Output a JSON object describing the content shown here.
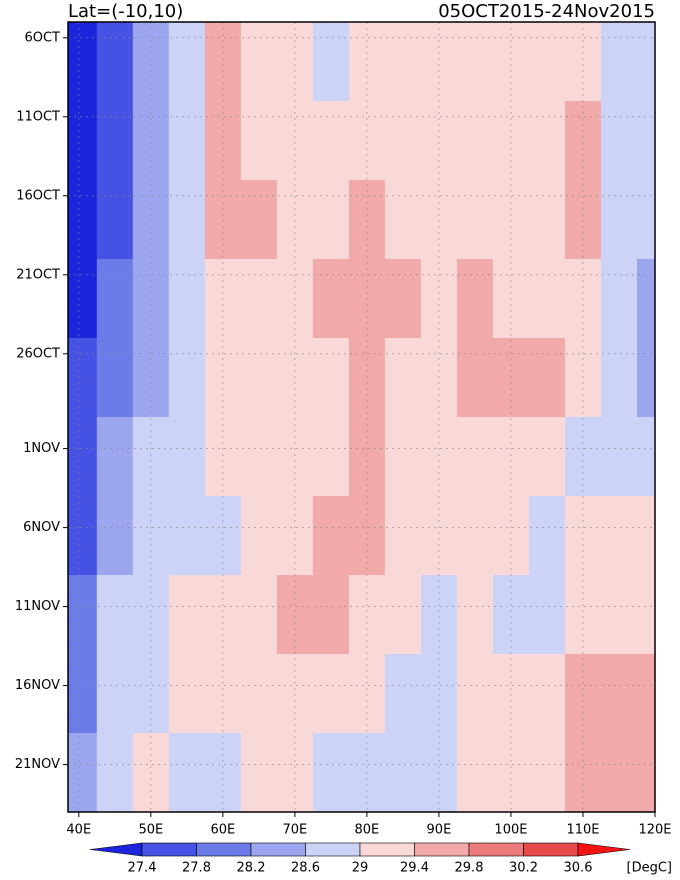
{
  "chart_data": {
    "type": "heatmap",
    "title": "Lat=(-10,10)",
    "subtitle": "05OCT2015-24Nov2015",
    "x": [
      40,
      45,
      50,
      55,
      60,
      65,
      70,
      75,
      80,
      85,
      90,
      95,
      100,
      105,
      110,
      115,
      120
    ],
    "y": [
      2.5,
      7.5,
      12.5,
      17.5,
      22.5,
      27.5,
      32.5,
      37.5,
      42.5,
      47.5
    ],
    "values": [
      [
        27.3,
        27.6,
        28.3,
        28.7,
        29.5,
        29.3,
        29.0,
        28.9,
        29.1,
        29.0,
        29.0,
        29.0,
        29.0,
        29.1,
        29.1,
        28.8,
        28.7
      ],
      [
        27.2,
        27.6,
        28.4,
        28.7,
        29.5,
        29.3,
        29.1,
        29.0,
        29.2,
        29.1,
        29.0,
        29.1,
        29.1,
        29.2,
        29.4,
        28.8,
        28.6
      ],
      [
        27.2,
        27.7,
        28.4,
        28.8,
        29.4,
        29.5,
        29.2,
        29.2,
        29.5,
        29.2,
        29.1,
        29.2,
        29.3,
        29.2,
        29.5,
        28.9,
        28.6
      ],
      [
        27.3,
        27.9,
        28.4,
        28.8,
        29.1,
        29.3,
        29.2,
        29.4,
        29.6,
        29.5,
        29.3,
        29.4,
        29.3,
        29.2,
        29.2,
        28.9,
        28.5
      ],
      [
        27.5,
        28.0,
        28.5,
        28.8,
        29.0,
        29.2,
        29.2,
        29.3,
        29.5,
        29.3,
        29.2,
        29.4,
        29.5,
        29.5,
        29.0,
        28.6,
        28.5
      ],
      [
        27.6,
        28.2,
        28.6,
        28.8,
        29.0,
        29.1,
        29.2,
        29.3,
        29.6,
        29.3,
        29.2,
        29.2,
        29.1,
        29.0,
        28.8,
        28.7,
        28.9
      ],
      [
        27.7,
        28.4,
        28.7,
        28.8,
        28.9,
        29.1,
        29.3,
        29.6,
        29.5,
        29.3,
        29.2,
        29.1,
        29.0,
        28.8,
        29.0,
        29.1,
        29.0
      ],
      [
        27.8,
        28.6,
        28.9,
        29.0,
        29.1,
        29.3,
        29.4,
        29.5,
        29.3,
        29.1,
        28.9,
        29.0,
        28.9,
        28.8,
        29.1,
        29.2,
        29.3
      ],
      [
        28.0,
        28.6,
        28.9,
        29.1,
        29.2,
        29.2,
        29.2,
        29.2,
        29.0,
        28.8,
        28.8,
        29.0,
        29.0,
        29.2,
        29.4,
        29.5,
        29.4
      ],
      [
        28.3,
        28.8,
        29.0,
        28.9,
        28.9,
        29.0,
        29.0,
        28.9,
        28.9,
        28.7,
        28.8,
        29.0,
        29.2,
        29.3,
        29.5,
        29.4,
        29.4
      ]
    ],
    "xlim": [
      38.5,
      120
    ],
    "ylim": [
      0,
      50
    ],
    "xticks": [
      {
        "value": 40,
        "label": "40E"
      },
      {
        "value": 50,
        "label": "50E"
      },
      {
        "value": 60,
        "label": "60E"
      },
      {
        "value": 70,
        "label": "70E"
      },
      {
        "value": 80,
        "label": "80E"
      },
      {
        "value": 90,
        "label": "90E"
      },
      {
        "value": 100,
        "label": "100E"
      },
      {
        "value": 110,
        "label": "110E"
      },
      {
        "value": 120,
        "label": "120E"
      }
    ],
    "yticks": [
      {
        "value": 1,
        "label": "6OCT"
      },
      {
        "value": 6,
        "label": "11OCT"
      },
      {
        "value": 11,
        "label": "16OCT"
      },
      {
        "value": 16,
        "label": "21OCT"
      },
      {
        "value": 21,
        "label": "26OCT"
      },
      {
        "value": 27,
        "label": "1NOV"
      },
      {
        "value": 32,
        "label": "6NOV"
      },
      {
        "value": 37,
        "label": "11NOV"
      },
      {
        "value": 42,
        "label": "16NOV"
      },
      {
        "value": 47,
        "label": "21NOV"
      }
    ],
    "grid": true,
    "levels": [
      27.4,
      27.8,
      28.2,
      28.6,
      29,
      29.4,
      29.8,
      30.2,
      30.6
    ],
    "colors": [
      "#1c24dc",
      "#4552e4",
      "#6d7be9",
      "#9ba6ef",
      "#cdd3f7",
      "#f9d8d8",
      "#f2a9a9",
      "#ec7b7b",
      "#e64a4a",
      "#f51414"
    ],
    "colorbar_label": "[DegC]"
  }
}
